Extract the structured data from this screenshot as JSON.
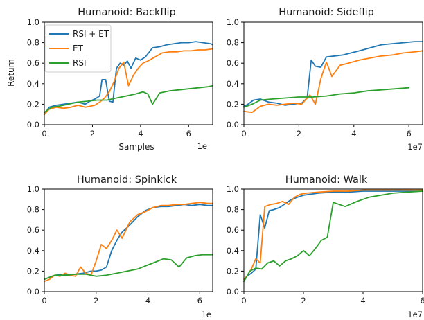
{
  "colors": {
    "rsi_et": "#1f77b4",
    "et": "#ff7f0e",
    "rsi": "#2ca02c"
  },
  "chart_data": [
    {
      "type": "line",
      "title": "Humanoid: Backflip",
      "xlabel": "Samples",
      "ylabel": "Return",
      "x_scale_label": "1e",
      "xlim": [
        0,
        7.0
      ],
      "ylim": [
        0,
        1.0
      ],
      "xticks": [
        0,
        2,
        4,
        6
      ],
      "yticks": [
        0.0,
        0.2,
        0.4,
        0.6,
        0.8,
        1.0
      ],
      "legend": {
        "placement": "top-left",
        "entries": [
          "RSI + ET",
          "ET",
          "RSI"
        ]
      },
      "series": [
        {
          "name": "RSI + ET",
          "color": "#1f77b4",
          "x": [
            0,
            0.2,
            0.5,
            0.8,
            1.1,
            1.4,
            1.7,
            1.9,
            2.1,
            2.3,
            2.4,
            2.55,
            2.7,
            2.85,
            3.0,
            3.15,
            3.3,
            3.45,
            3.6,
            3.8,
            4.0,
            4.2,
            4.5,
            4.8,
            5.1,
            5.4,
            5.7,
            6.0,
            6.3,
            6.6,
            6.9,
            7.0
          ],
          "y": [
            0.1,
            0.17,
            0.19,
            0.2,
            0.21,
            0.22,
            0.2,
            0.23,
            0.25,
            0.28,
            0.44,
            0.44,
            0.23,
            0.22,
            0.55,
            0.6,
            0.58,
            0.62,
            0.55,
            0.65,
            0.63,
            0.66,
            0.75,
            0.76,
            0.78,
            0.79,
            0.8,
            0.8,
            0.81,
            0.8,
            0.79,
            0.78
          ]
        },
        {
          "name": "ET",
          "color": "#ff7f0e",
          "x": [
            0,
            0.2,
            0.5,
            0.8,
            1.1,
            1.4,
            1.7,
            1.9,
            2.1,
            2.3,
            2.5,
            2.7,
            2.9,
            3.1,
            3.3,
            3.5,
            3.7,
            3.9,
            4.1,
            4.3,
            4.6,
            4.9,
            5.2,
            5.5,
            5.8,
            6.1,
            6.4,
            6.7,
            7.0
          ],
          "y": [
            0.1,
            0.15,
            0.17,
            0.16,
            0.17,
            0.19,
            0.17,
            0.18,
            0.19,
            0.22,
            0.26,
            0.32,
            0.42,
            0.55,
            0.61,
            0.38,
            0.48,
            0.55,
            0.6,
            0.62,
            0.66,
            0.7,
            0.71,
            0.71,
            0.72,
            0.72,
            0.73,
            0.73,
            0.74
          ]
        },
        {
          "name": "RSI",
          "color": "#2ca02c",
          "x": [
            0,
            0.3,
            0.6,
            1.0,
            1.4,
            1.8,
            2.2,
            2.6,
            3.0,
            3.4,
            3.8,
            4.1,
            4.3,
            4.5,
            4.8,
            5.2,
            5.6,
            6.0,
            6.4,
            6.8,
            7.0
          ],
          "y": [
            0.12,
            0.17,
            0.18,
            0.2,
            0.22,
            0.23,
            0.24,
            0.24,
            0.26,
            0.28,
            0.3,
            0.32,
            0.3,
            0.2,
            0.31,
            0.33,
            0.34,
            0.35,
            0.36,
            0.37,
            0.38
          ]
        }
      ]
    },
    {
      "type": "line",
      "title": "Humanoid: Sideflip",
      "xlabel": "",
      "ylabel": "",
      "x_scale_label": "1e7",
      "xlim": [
        0,
        6.5
      ],
      "ylim": [
        0,
        1.0
      ],
      "xticks": [
        0,
        2,
        4,
        6
      ],
      "yticks": [
        0.0,
        0.2,
        0.4,
        0.6,
        0.8,
        1.0
      ],
      "series": [
        {
          "name": "RSI + ET",
          "color": "#1f77b4",
          "x": [
            0,
            0.15,
            0.35,
            0.6,
            0.9,
            1.2,
            1.5,
            1.8,
            2.1,
            2.3,
            2.45,
            2.6,
            2.8,
            3.0,
            3.3,
            3.6,
            3.9,
            4.2,
            4.6,
            5.0,
            5.4,
            5.8,
            6.2,
            6.5
          ],
          "y": [
            0.18,
            0.2,
            0.24,
            0.25,
            0.22,
            0.21,
            0.19,
            0.2,
            0.21,
            0.26,
            0.63,
            0.57,
            0.56,
            0.66,
            0.67,
            0.68,
            0.7,
            0.72,
            0.75,
            0.78,
            0.79,
            0.8,
            0.81,
            0.81
          ]
        },
        {
          "name": "ET",
          "color": "#ff7f0e",
          "x": [
            0,
            0.3,
            0.6,
            0.9,
            1.2,
            1.5,
            1.8,
            2.1,
            2.4,
            2.6,
            2.8,
            3.0,
            3.2,
            3.5,
            3.8,
            4.2,
            4.6,
            5.0,
            5.4,
            5.8,
            6.2,
            6.5
          ],
          "y": [
            0.13,
            0.12,
            0.18,
            0.2,
            0.19,
            0.2,
            0.21,
            0.2,
            0.29,
            0.2,
            0.45,
            0.61,
            0.47,
            0.58,
            0.6,
            0.63,
            0.65,
            0.67,
            0.68,
            0.7,
            0.71,
            0.72
          ]
        },
        {
          "name": "RSI",
          "color": "#2ca02c",
          "x": [
            0,
            0.3,
            0.6,
            1.0,
            1.5,
            2.0,
            2.5,
            3.0,
            3.5,
            4.0,
            4.5,
            5.0,
            5.5,
            6.0
          ],
          "y": [
            0.17,
            0.2,
            0.24,
            0.25,
            0.26,
            0.27,
            0.27,
            0.28,
            0.3,
            0.31,
            0.33,
            0.34,
            0.35,
            0.36
          ]
        }
      ]
    },
    {
      "type": "line",
      "title": "Humanoid: Spinkick",
      "xlabel": "",
      "ylabel": "",
      "x_scale_label": "1e",
      "xlim": [
        0,
        6.5
      ],
      "ylim": [
        0,
        1.0
      ],
      "xticks": [
        0,
        2,
        4,
        6
      ],
      "yticks": [
        0.0,
        0.2,
        0.4,
        0.6,
        0.8,
        1.0
      ],
      "series": [
        {
          "name": "RSI + ET",
          "color": "#1f77b4",
          "x": [
            0,
            0.3,
            0.6,
            0.9,
            1.2,
            1.5,
            1.8,
            2.0,
            2.2,
            2.4,
            2.6,
            2.8,
            3.0,
            3.3,
            3.6,
            3.9,
            4.2,
            4.5,
            4.8,
            5.1,
            5.4,
            5.7,
            6.0,
            6.3,
            6.5
          ],
          "y": [
            0.12,
            0.15,
            0.17,
            0.16,
            0.17,
            0.18,
            0.2,
            0.2,
            0.21,
            0.24,
            0.4,
            0.5,
            0.58,
            0.65,
            0.73,
            0.79,
            0.82,
            0.83,
            0.83,
            0.84,
            0.85,
            0.84,
            0.85,
            0.84,
            0.84
          ]
        },
        {
          "name": "ET",
          "color": "#ff7f0e",
          "x": [
            0,
            0.2,
            0.4,
            0.6,
            0.8,
            1.0,
            1.2,
            1.4,
            1.6,
            1.8,
            2.0,
            2.2,
            2.4,
            2.6,
            2.8,
            3.0,
            3.3,
            3.6,
            3.9,
            4.2,
            4.5,
            4.8,
            5.1,
            5.4,
            5.7,
            6.0,
            6.3,
            6.5
          ],
          "y": [
            0.1,
            0.12,
            0.16,
            0.15,
            0.18,
            0.16,
            0.15,
            0.24,
            0.18,
            0.16,
            0.3,
            0.46,
            0.42,
            0.5,
            0.6,
            0.52,
            0.68,
            0.75,
            0.78,
            0.82,
            0.84,
            0.84,
            0.85,
            0.85,
            0.86,
            0.87,
            0.86,
            0.86
          ]
        },
        {
          "name": "RSI",
          "color": "#2ca02c",
          "x": [
            0,
            0.4,
            0.8,
            1.2,
            1.6,
            2.0,
            2.4,
            2.8,
            3.2,
            3.6,
            4.0,
            4.3,
            4.6,
            4.9,
            5.2,
            5.5,
            5.8,
            6.1,
            6.5
          ],
          "y": [
            0.12,
            0.16,
            0.16,
            0.17,
            0.17,
            0.15,
            0.16,
            0.18,
            0.2,
            0.22,
            0.26,
            0.29,
            0.32,
            0.31,
            0.24,
            0.33,
            0.35,
            0.36,
            0.36
          ]
        }
      ]
    },
    {
      "type": "line",
      "title": "Humanoid: Walk",
      "xlabel": "",
      "ylabel": "",
      "x_scale_label": "1e7",
      "xlim": [
        0,
        6.0
      ],
      "ylim": [
        0,
        1.0
      ],
      "xticks": [
        0,
        2,
        4,
        6
      ],
      "yticks": [
        0.0,
        0.2,
        0.4,
        0.6,
        0.8,
        1.0
      ],
      "series": [
        {
          "name": "RSI + ET",
          "color": "#1f77b4",
          "x": [
            0,
            0.1,
            0.25,
            0.4,
            0.55,
            0.7,
            0.85,
            1.0,
            1.2,
            1.4,
            1.6,
            1.8,
            2.0,
            2.5,
            3.0,
            3.5,
            4.0,
            4.5,
            5.0,
            5.5,
            6.0
          ],
          "y": [
            0.1,
            0.15,
            0.18,
            0.22,
            0.75,
            0.62,
            0.79,
            0.8,
            0.82,
            0.86,
            0.9,
            0.92,
            0.94,
            0.96,
            0.97,
            0.97,
            0.98,
            0.98,
            0.98,
            0.98,
            0.98
          ]
        },
        {
          "name": "ET",
          "color": "#ff7f0e",
          "x": [
            0,
            0.1,
            0.25,
            0.4,
            0.55,
            0.7,
            0.9,
            1.1,
            1.3,
            1.5,
            1.7,
            1.9,
            2.1,
            2.5,
            3.0,
            3.5,
            4.0,
            4.5,
            5.0,
            5.5,
            6.0
          ],
          "y": [
            0.12,
            0.15,
            0.22,
            0.32,
            0.28,
            0.83,
            0.85,
            0.86,
            0.88,
            0.85,
            0.92,
            0.95,
            0.96,
            0.97,
            0.98,
            0.98,
            0.99,
            0.99,
            0.99,
            0.99,
            0.99
          ]
        },
        {
          "name": "RSI",
          "color": "#2ca02c",
          "x": [
            0,
            0.2,
            0.4,
            0.6,
            0.8,
            1.0,
            1.2,
            1.4,
            1.6,
            1.8,
            2.0,
            2.2,
            2.4,
            2.6,
            2.8,
            3.0,
            3.4,
            3.8,
            4.2,
            4.6,
            5.0,
            5.5,
            6.0
          ],
          "y": [
            0.1,
            0.2,
            0.23,
            0.22,
            0.28,
            0.3,
            0.25,
            0.3,
            0.32,
            0.35,
            0.4,
            0.35,
            0.42,
            0.5,
            0.53,
            0.87,
            0.83,
            0.88,
            0.92,
            0.94,
            0.96,
            0.97,
            0.98
          ]
        }
      ]
    }
  ]
}
